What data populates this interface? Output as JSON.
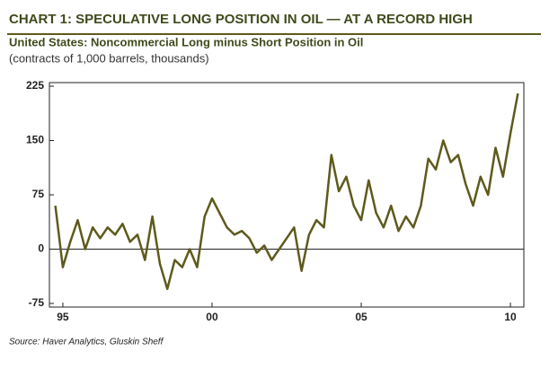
{
  "chart_data": {
    "type": "line",
    "title": "CHART 1: SPECULATIVE LONG POSITION IN OIL — AT A RECORD HIGH",
    "subtitle": "United States: Noncommercial Long minus Short Position in Oil",
    "y_label": "(contracts of 1,000 barrels, thousands)",
    "source": "Source: Haver Analytics, Gluskin Sheff",
    "x": [
      1994.75,
      1995,
      1995.25,
      1995.5,
      1995.75,
      1996,
      1996.25,
      1996.5,
      1996.75,
      1997,
      1997.25,
      1997.5,
      1997.75,
      1998,
      1998.25,
      1998.5,
      1998.75,
      1999,
      1999.25,
      1999.5,
      1999.75,
      2000,
      2000.25,
      2000.5,
      2000.75,
      2001,
      2001.25,
      2001.5,
      2001.75,
      2002,
      2002.25,
      2002.5,
      2002.75,
      2003,
      2003.25,
      2003.5,
      2003.75,
      2004,
      2004.25,
      2004.5,
      2004.75,
      2005,
      2005.25,
      2005.5,
      2005.75,
      2006,
      2006.25,
      2006.5,
      2006.75,
      2007,
      2007.25,
      2007.5,
      2007.75,
      2008,
      2008.25,
      2008.5,
      2008.75,
      2009,
      2009.25,
      2009.5,
      2009.75,
      2010,
      2010.25
    ],
    "series": [
      {
        "name": "Noncommercial Long minus Short Position",
        "color": "#5e5a1c",
        "values": [
          60,
          -25,
          10,
          40,
          0,
          30,
          15,
          30,
          20,
          35,
          10,
          20,
          -15,
          45,
          -20,
          -55,
          -15,
          -25,
          0,
          -25,
          45,
          70,
          50,
          30,
          20,
          25,
          15,
          -5,
          5,
          -15,
          0,
          15,
          30,
          -30,
          20,
          40,
          30,
          130,
          80,
          100,
          60,
          40,
          95,
          50,
          30,
          60,
          25,
          45,
          30,
          60,
          125,
          110,
          150,
          120,
          130,
          90,
          60,
          100,
          75,
          140,
          100,
          160,
          215
        ]
      }
    ],
    "xlim": [
      1994.55,
      2010.45
    ],
    "xticks": [
      {
        "value": 1995,
        "label": "95"
      },
      {
        "value": 2000,
        "label": "00"
      },
      {
        "value": 2005,
        "label": "05"
      },
      {
        "value": 2010,
        "label": "10"
      }
    ],
    "ylim": [
      -80,
      230
    ],
    "yticks": [
      225,
      150,
      75,
      0,
      -75
    ],
    "zero_line": true
  }
}
